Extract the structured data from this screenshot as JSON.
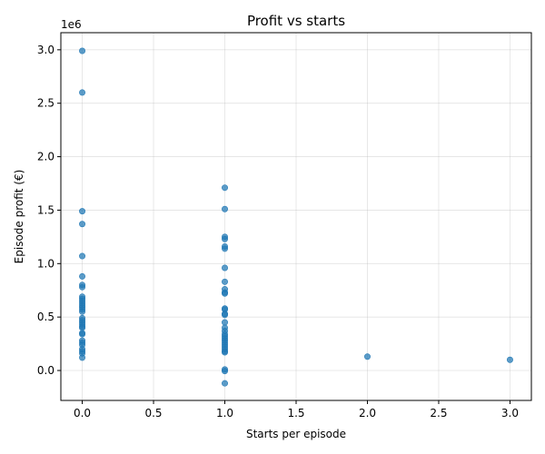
{
  "chart_data": {
    "type": "scatter",
    "title": "Profit vs starts",
    "xlabel": "Starts per episode",
    "ylabel": "Episode profit (€)",
    "y_offset_text": "1e6",
    "xlim": [
      -0.15,
      3.15
    ],
    "ylim": [
      -280000,
      3160000
    ],
    "x_ticks": [
      0.0,
      0.5,
      1.0,
      1.5,
      2.0,
      2.5,
      3.0
    ],
    "x_tick_labels": [
      "0.0",
      "0.5",
      "1.0",
      "1.5",
      "2.0",
      "2.5",
      "3.0"
    ],
    "y_ticks": [
      0,
      500000,
      1000000,
      1500000,
      2000000,
      2500000,
      3000000
    ],
    "y_tick_labels": [
      "0.0",
      "0.5",
      "1.0",
      "1.5",
      "2.0",
      "2.5",
      "3.0"
    ],
    "grid": true,
    "color": "#1f77b4",
    "series": [
      {
        "points": [
          [
            0,
            2990000
          ],
          [
            0,
            2600000
          ],
          [
            0,
            1490000
          ],
          [
            0,
            1370000
          ],
          [
            0,
            1070000
          ],
          [
            0,
            880000
          ],
          [
            0,
            800000
          ],
          [
            0,
            780000
          ],
          [
            0,
            690000
          ],
          [
            0,
            670000
          ],
          [
            0,
            650000
          ],
          [
            0,
            630000
          ],
          [
            0,
            610000
          ],
          [
            0,
            590000
          ],
          [
            0,
            570000
          ],
          [
            0,
            550000
          ],
          [
            0,
            490000
          ],
          [
            0,
            470000
          ],
          [
            0,
            450000
          ],
          [
            0,
            430000
          ],
          [
            0,
            410000
          ],
          [
            0,
            400000
          ],
          [
            0,
            350000
          ],
          [
            0,
            340000
          ],
          [
            0,
            280000
          ],
          [
            0,
            260000
          ],
          [
            0,
            240000
          ],
          [
            0,
            200000
          ],
          [
            0,
            180000
          ],
          [
            0,
            160000
          ],
          [
            0,
            120000
          ],
          [
            1,
            1710000
          ],
          [
            1,
            1510000
          ],
          [
            1,
            1250000
          ],
          [
            1,
            1230000
          ],
          [
            1,
            1160000
          ],
          [
            1,
            1140000
          ],
          [
            1,
            960000
          ],
          [
            1,
            830000
          ],
          [
            1,
            760000
          ],
          [
            1,
            730000
          ],
          [
            1,
            720000
          ],
          [
            1,
            580000
          ],
          [
            1,
            570000
          ],
          [
            1,
            530000
          ],
          [
            1,
            520000
          ],
          [
            1,
            450000
          ],
          [
            1,
            400000
          ],
          [
            1,
            370000
          ],
          [
            1,
            340000
          ],
          [
            1,
            320000
          ],
          [
            1,
            300000
          ],
          [
            1,
            280000
          ],
          [
            1,
            260000
          ],
          [
            1,
            240000
          ],
          [
            1,
            220000
          ],
          [
            1,
            200000
          ],
          [
            1,
            180000
          ],
          [
            1,
            170000
          ],
          [
            1,
            10000
          ],
          [
            1,
            -5000
          ],
          [
            1,
            -120000
          ],
          [
            2,
            130000
          ],
          [
            3,
            100000
          ]
        ]
      }
    ]
  }
}
